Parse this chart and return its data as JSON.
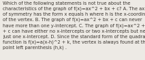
{
  "text": "Which of the following statements is not true about the\ncharacteristics of the graph of f(x)=ax^2 + bx + c? A. The axis\nof symmetry has the form x equals h where h is the x-coordinate\nof the vertex. B. The graph of f(x)=ax^2 + bx + c can never\nhave more than one y-intercept. C. The graph of f(x)=ax^2 + bx\n+ c can have either no x-intercepts or two x-intercepts but never\njust one x-intercept. D. Since the standard form of the quadratic\nfunction is f(x)=a(x-h)^2 + k, the vertex is always found at the\npoint left parenthesis (h,k) .",
  "background_color": "#edeae5",
  "text_color": "#3a3530",
  "font_size": 4.85,
  "linespacing": 1.38,
  "figwidth": 2.13,
  "figheight": 0.88,
  "dpi": 100
}
